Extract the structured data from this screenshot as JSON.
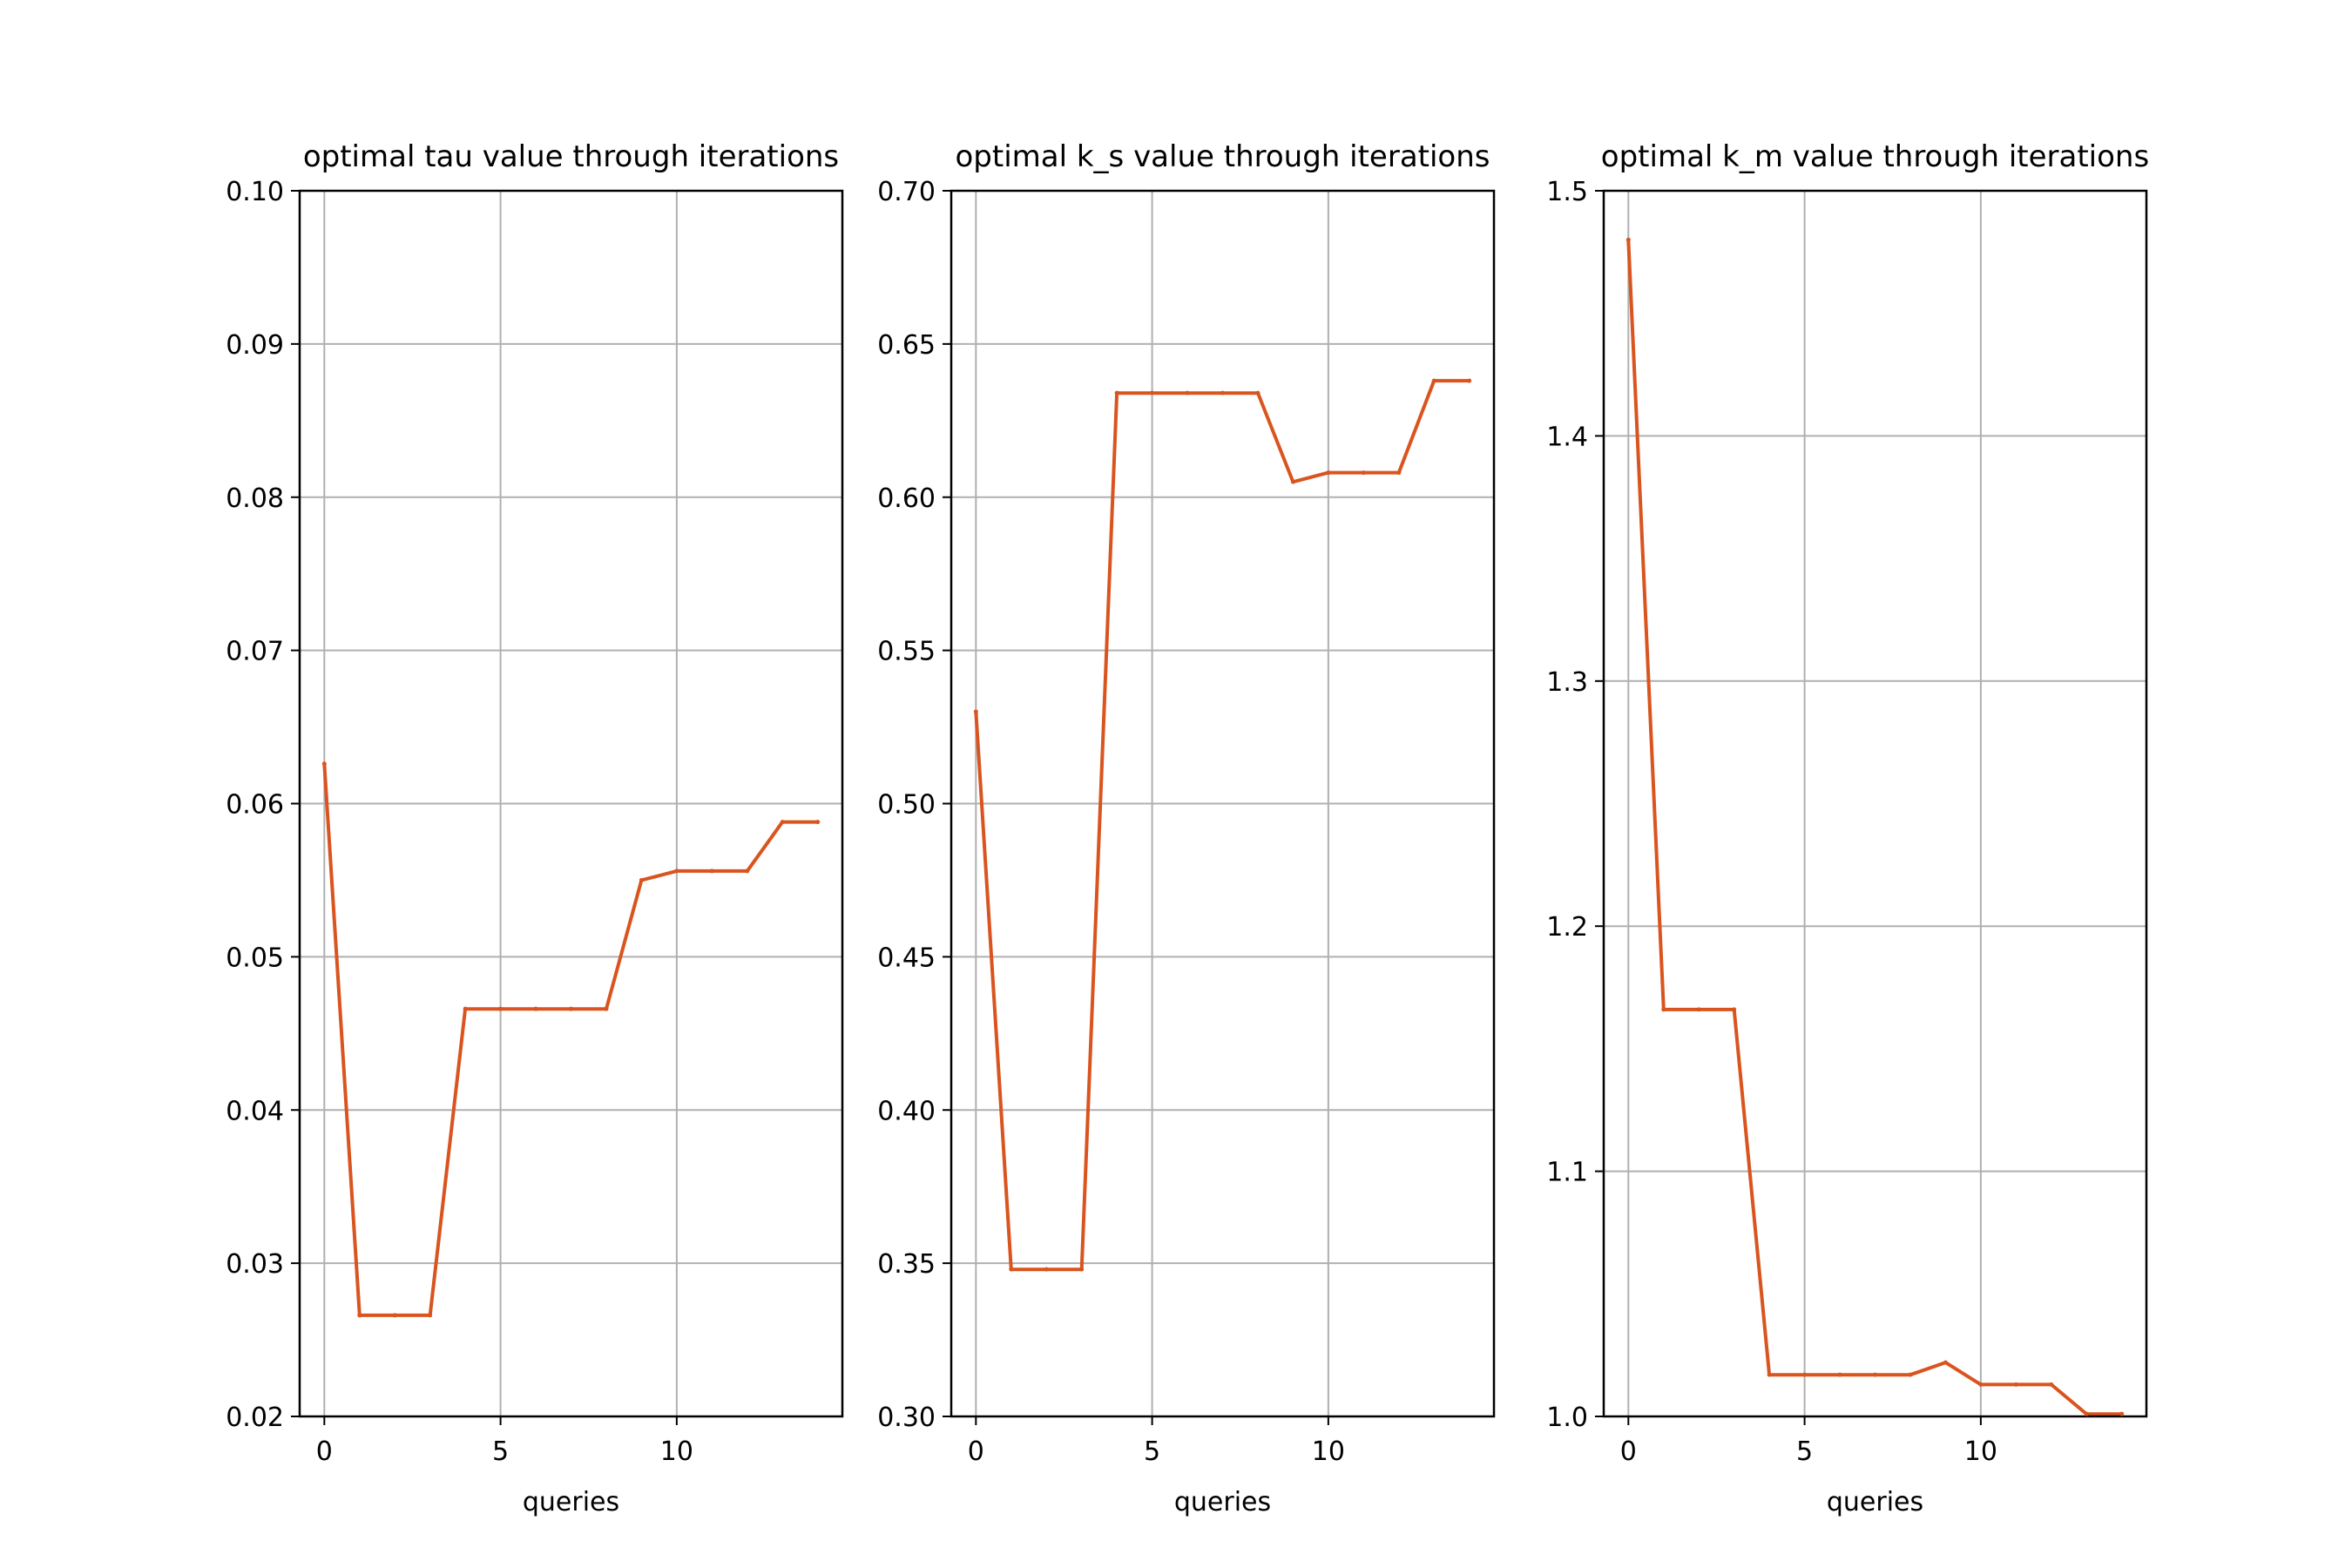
{
  "chart_data": [
    {
      "type": "line",
      "title": "optimal tau value through iterations",
      "xlabel": "queries",
      "ylabel": "",
      "xlim": [
        -0.7,
        14.7
      ],
      "ylim": [
        0.02,
        0.1
      ],
      "xticks": [
        0,
        5,
        10
      ],
      "xtick_labels": [
        "0",
        "5",
        "10"
      ],
      "yticks": [
        0.02,
        0.03,
        0.04,
        0.05,
        0.06,
        0.07,
        0.08,
        0.09,
        0.1
      ],
      "ytick_labels": [
        "0.02",
        "0.03",
        "0.04",
        "0.05",
        "0.06",
        "0.07",
        "0.08",
        "0.09",
        "0.10"
      ],
      "grid": true,
      "x": [
        0,
        1,
        2,
        3,
        4,
        5,
        6,
        7,
        8,
        9,
        10,
        11,
        12,
        13,
        14
      ],
      "values": [
        0.0626,
        0.0266,
        0.0266,
        0.0266,
        0.0466,
        0.0466,
        0.0466,
        0.0466,
        0.0466,
        0.055,
        0.0556,
        0.0556,
        0.0556,
        0.0588,
        0.0588
      ]
    },
    {
      "type": "line",
      "title": "optimal k_s value through iterations",
      "xlabel": "queries",
      "ylabel": "",
      "xlim": [
        -0.7,
        14.7
      ],
      "ylim": [
        0.3,
        0.7
      ],
      "xticks": [
        0,
        5,
        10
      ],
      "xtick_labels": [
        "0",
        "5",
        "10"
      ],
      "yticks": [
        0.3,
        0.35,
        0.4,
        0.45,
        0.5,
        0.55,
        0.6,
        0.65,
        0.7
      ],
      "ytick_labels": [
        "0.30",
        "0.35",
        "0.40",
        "0.45",
        "0.50",
        "0.55",
        "0.60",
        "0.65",
        "0.70"
      ],
      "grid": true,
      "x": [
        0,
        1,
        2,
        3,
        4,
        5,
        6,
        7,
        8,
        9,
        10,
        11,
        12,
        13,
        14
      ],
      "values": [
        0.53,
        0.348,
        0.348,
        0.348,
        0.634,
        0.634,
        0.634,
        0.634,
        0.634,
        0.605,
        0.608,
        0.608,
        0.608,
        0.638,
        0.638
      ]
    },
    {
      "type": "line",
      "title": "optimal k_m value through iterations",
      "xlabel": "queries",
      "ylabel": "",
      "xlim": [
        -0.7,
        14.7
      ],
      "ylim": [
        1.0,
        1.5
      ],
      "xticks": [
        0,
        5,
        10
      ],
      "xtick_labels": [
        "0",
        "5",
        "10"
      ],
      "yticks": [
        1.0,
        1.1,
        1.2,
        1.3,
        1.4,
        1.5
      ],
      "ytick_labels": [
        "1.0",
        "1.1",
        "1.2",
        "1.3",
        "1.4",
        "1.5"
      ],
      "grid": true,
      "x": [
        0,
        1,
        2,
        3,
        4,
        5,
        6,
        7,
        8,
        9,
        10,
        11,
        12,
        13,
        14
      ],
      "values": [
        1.48,
        1.166,
        1.166,
        1.166,
        1.017,
        1.017,
        1.017,
        1.017,
        1.017,
        1.022,
        1.013,
        1.013,
        1.013,
        1.001,
        1.001
      ]
    }
  ],
  "colors": {
    "line": "#d9541e",
    "grid": "#b0b0b0",
    "axes": "#000000",
    "background": "#ffffff"
  }
}
